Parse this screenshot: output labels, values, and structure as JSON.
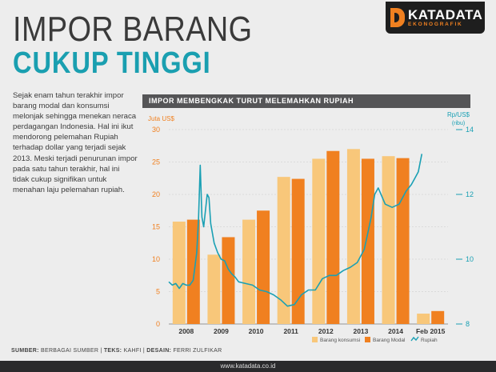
{
  "header": {
    "title_line1": "IMPOR BARANG",
    "title_line2": "CUKUP TINGGI"
  },
  "logo": {
    "main": "KATADATA",
    "sub": "EKONOGRAFIK",
    "icon": "katadata-d-logo"
  },
  "body_text": "Sejak enam tahun terakhir impor barang modal dan konsumsi melonjak sehingga menekan neraca perdagangan Indonesia. Hal ini ikut mendorong pelemahan Rupiah terhadap dollar yang terjadi sejak 2013. Meski terjadi penurunan impor pada satu tahun terakhir, hal ini tidak cukup signifikan untuk menahan laju pelemahan rupiah.",
  "chart_header": "IMPOR MEMBENGKAK TURUT MELEMAHKAN RUPIAH",
  "footer": {
    "sumber_label": "SUMBER:",
    "sumber_value": "BERBAGAI SUMBER",
    "teks_label": "TEKS:",
    "teks_value": "KAHFI",
    "desain_label": "DESAIN:",
    "desain_value": "FERRI ZULFIKAR",
    "website": "www.katadata.co.id"
  },
  "colors": {
    "accent": "#1a9fb0",
    "konsumsi": "#f8c77a",
    "modal": "#f08020",
    "rupiah": "#1aa0b4",
    "header_bg": "#555557"
  },
  "chart_data": {
    "type": "bar",
    "categories": [
      "2008",
      "2009",
      "2010",
      "2011",
      "2012",
      "2013",
      "2014",
      "Feb 2015"
    ],
    "series": [
      {
        "name": "Barang konsumsi",
        "values": [
          15.8,
          10.7,
          16.1,
          22.7,
          25.5,
          27.0,
          25.9,
          1.6
        ]
      },
      {
        "name": "Barang Modal",
        "values": [
          16.1,
          13.4,
          17.5,
          22.4,
          26.7,
          25.5,
          25.6,
          2.0
        ]
      }
    ],
    "line_series": {
      "name": "Rupiah",
      "x": [
        2008.0,
        2008.1,
        2008.2,
        2008.3,
        2008.4,
        2008.5,
        2008.6,
        2008.7,
        2008.8,
        2008.85,
        2008.9,
        2008.95,
        2009.0,
        2009.05,
        2009.1,
        2009.15,
        2009.2,
        2009.3,
        2009.4,
        2009.5,
        2009.6,
        2009.7,
        2009.8,
        2009.9,
        2010.0,
        2010.2,
        2010.4,
        2010.6,
        2010.8,
        2011.0,
        2011.2,
        2011.4,
        2011.6,
        2011.8,
        2012.0,
        2012.2,
        2012.4,
        2012.6,
        2012.8,
        2013.0,
        2013.2,
        2013.4,
        2013.6,
        2013.7,
        2013.8,
        2013.9,
        2014.0,
        2014.2,
        2014.4,
        2014.6,
        2014.8,
        2014.95,
        2015.05,
        2015.15,
        2015.25
      ],
      "values": [
        9.3,
        9.2,
        9.25,
        9.1,
        9.25,
        9.2,
        9.2,
        9.35,
        10.2,
        11.2,
        12.9,
        11.3,
        11.0,
        11.5,
        12.0,
        11.9,
        11.1,
        10.5,
        10.2,
        10.0,
        9.95,
        9.7,
        9.55,
        9.45,
        9.3,
        9.25,
        9.2,
        9.05,
        9.0,
        8.9,
        8.75,
        8.55,
        8.6,
        8.9,
        9.05,
        9.05,
        9.4,
        9.5,
        9.5,
        9.65,
        9.75,
        9.9,
        10.3,
        10.8,
        11.3,
        12.0,
        12.2,
        11.7,
        11.6,
        11.7,
        12.1,
        12.3,
        12.5,
        12.7,
        13.25
      ]
    },
    "y_left_label": "Juta US$",
    "y_right_label": "Rp/US$",
    "y_right_sublabel": "(ribu)",
    "ylim": [
      0,
      30
    ],
    "y_ticks": [
      0,
      5,
      10,
      15,
      20,
      25,
      30
    ],
    "y2lim": [
      8,
      14
    ],
    "y2_ticks": [
      8,
      10,
      12,
      14
    ],
    "legend_position": "bottom-right",
    "legend": [
      "Barang konsumsi",
      "Barang Modal",
      "Rupiah"
    ]
  }
}
